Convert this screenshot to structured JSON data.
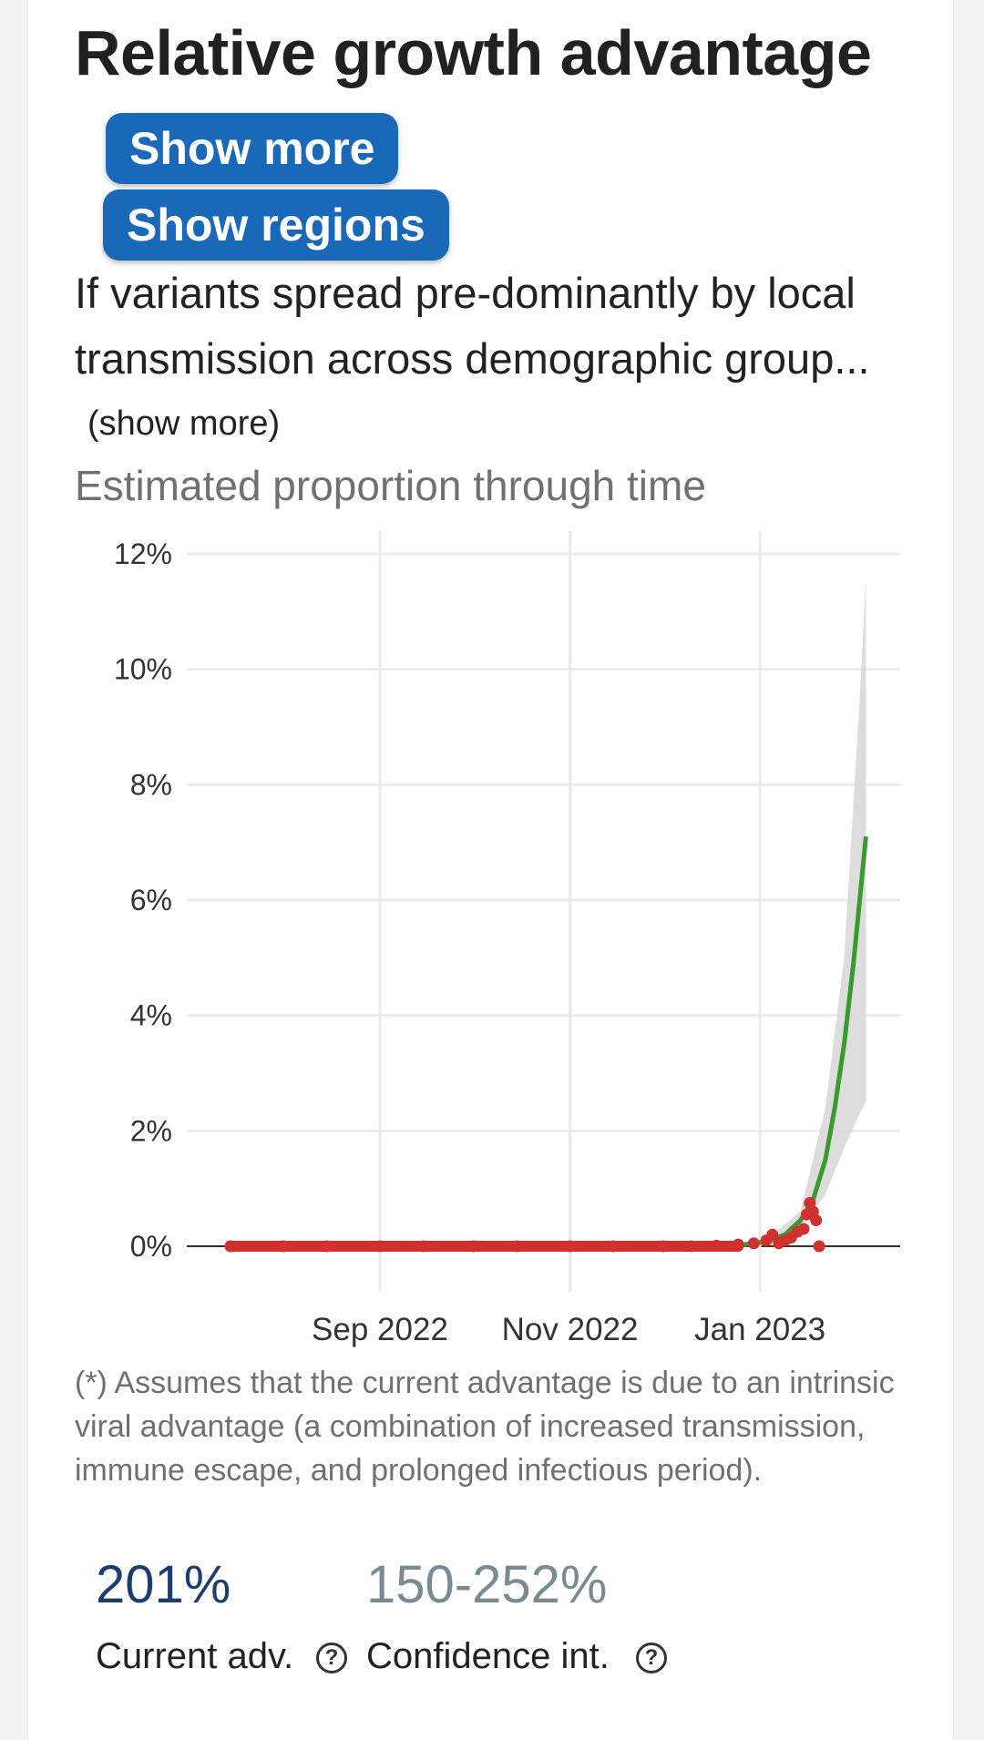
{
  "card": {
    "title": "Relative growth advantage",
    "show_more_button": "Show more",
    "show_regions_button": "Show regions",
    "description": "If variants spread pre-dominantly by local transmission across demographic group...",
    "show_more_link": "(show more)",
    "chart_title": "Estimated proportion through time",
    "footnote": "(*) Assumes that the current advantage is due to an intrinsic viral advantage (a combination of increased transmission, immune escape, and prolonged infectious period).",
    "current_adv_value": "201%",
    "confidence_value": "150-252%",
    "current_adv_label": "Current adv.",
    "confidence_label": "Confidence int.",
    "help_icon_glyph": "?"
  },
  "colors": {
    "button_bg": "#1a68b8",
    "fit_line": "#3a9a2e",
    "observed_points": "#d03030",
    "confidence_band": "#d9d9d9",
    "value_main": "#1d3d6e",
    "value_ci": "#7a8a93"
  },
  "icons": {
    "help": "question-circle-icon"
  },
  "chart_data": {
    "type": "line",
    "title": "Estimated proportion through time",
    "xlabel": "",
    "ylabel": "",
    "x_ticks": [
      "Sep 2022",
      "Nov 2022",
      "Jan 2023"
    ],
    "y_ticks": [
      "0%",
      "2%",
      "4%",
      "6%",
      "8%",
      "10%",
      "12%"
    ],
    "ylim": [
      0,
      12
    ],
    "xlim": [
      "2022-07-01",
      "2023-02-15"
    ],
    "grid": true,
    "series": [
      {
        "type": "line",
        "x": [
          "2022-12-20",
          "2022-12-27",
          "2023-01-03",
          "2023-01-09",
          "2023-01-14",
          "2023-01-18",
          "2023-01-22",
          "2023-01-25",
          "2023-01-28",
          "2023-01-31",
          "2023-02-02",
          "2023-02-04"
        ],
        "y": [
          0.01,
          0.03,
          0.08,
          0.2,
          0.45,
          0.8,
          1.5,
          2.4,
          3.5,
          4.9,
          6.0,
          7.1
        ]
      },
      {
        "type": "band",
        "x": [
          "2022-12-20",
          "2023-01-03",
          "2023-01-14",
          "2023-01-22",
          "2023-01-28",
          "2023-02-02",
          "2023-02-04"
        ],
        "y_low": [
          0.0,
          0.05,
          0.3,
          0.9,
          1.7,
          2.3,
          2.5
        ],
        "y_high": [
          0.02,
          0.12,
          0.6,
          2.4,
          5.0,
          9.5,
          11.6
        ]
      },
      {
        "type": "scatter",
        "x": [
          "2022-07-15",
          "2022-08-01",
          "2022-08-15",
          "2022-09-01",
          "2022-09-15",
          "2022-10-01",
          "2022-10-15",
          "2022-11-01",
          "2022-11-15",
          "2022-12-01",
          "2022-12-10",
          "2022-12-18",
          "2022-12-25",
          "2022-12-30",
          "2023-01-03",
          "2023-01-05",
          "2023-01-07",
          "2023-01-09",
          "2023-01-11",
          "2023-01-13",
          "2023-01-15",
          "2023-01-16",
          "2023-01-17",
          "2023-01-18",
          "2023-01-19",
          "2023-01-20"
        ],
        "y": [
          0,
          0,
          0,
          0,
          0,
          0,
          0,
          0,
          0,
          0,
          0,
          0.01,
          0.03,
          0.05,
          0.1,
          0.2,
          0.05,
          0.1,
          0.15,
          0.25,
          0.3,
          0.55,
          0.75,
          0.6,
          0.45,
          0.0
        ]
      }
    ]
  }
}
